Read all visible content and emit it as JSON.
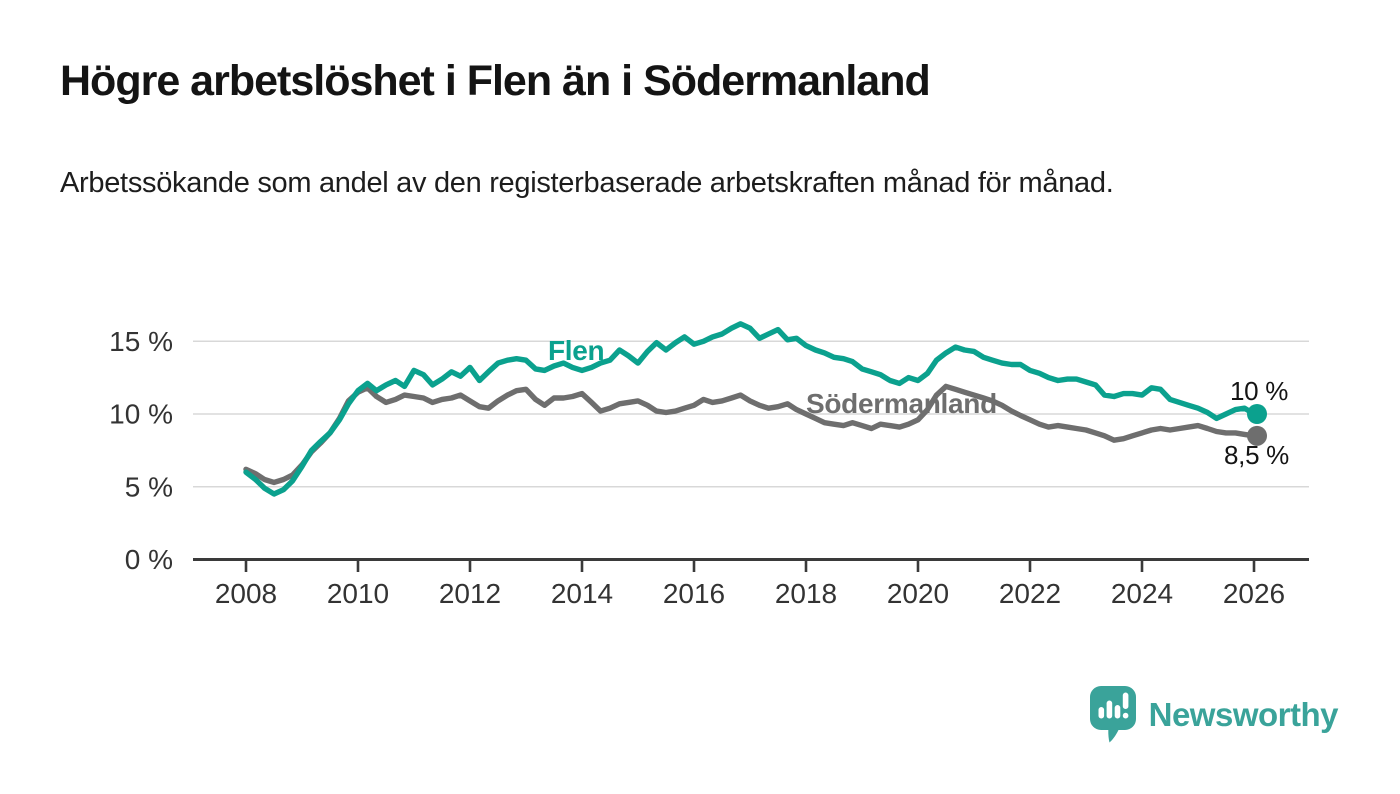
{
  "header": {
    "title": "Högre arbetslöshet i Flen än i Södermanland",
    "subtitle": "Arbetssökande som andel av den registerbaserade arbetskraften månad för månad."
  },
  "chart_data": {
    "type": "line",
    "title": "Högre arbetslöshet i Flen än i Södermanland",
    "subtitle": "Arbetssökande som andel av den registerbaserade arbetskraften månad för månad.",
    "unit": "%",
    "grid": "horizontal-only",
    "legend_position": "inline-labels-on-lines",
    "x_axis": {
      "range_years": [
        2008,
        2026.1
      ],
      "ticks": [
        2008,
        2010,
        2012,
        2014,
        2016,
        2018,
        2020,
        2022,
        2024,
        2026
      ],
      "tick_labels": [
        "2008",
        "2010",
        "2012",
        "2014",
        "2016",
        "2018",
        "2020",
        "2022",
        "2024",
        "2026"
      ]
    },
    "y_axis": {
      "range": [
        0,
        17
      ],
      "ticks": [
        {
          "value": 0,
          "label": "0 %"
        },
        {
          "value": 5,
          "label": "5 %"
        },
        {
          "value": 10,
          "label": "10 %"
        },
        {
          "value": 15,
          "label": "15 %"
        }
      ]
    },
    "style": {
      "grid_color": "#d8d8d8",
      "axis_color": "#3a3a3a",
      "tick_label_color": "#333333",
      "background": "#ffffff"
    },
    "x": [
      2008,
      2008.17,
      2008.33,
      2008.5,
      2008.67,
      2008.83,
      2009,
      2009.17,
      2009.33,
      2009.5,
      2009.67,
      2009.83,
      2010,
      2010.17,
      2010.33,
      2010.5,
      2010.67,
      2010.83,
      2011,
      2011.17,
      2011.33,
      2011.5,
      2011.67,
      2011.83,
      2012,
      2012.17,
      2012.33,
      2012.5,
      2012.67,
      2012.83,
      2013,
      2013.17,
      2013.33,
      2013.5,
      2013.67,
      2013.83,
      2014,
      2014.17,
      2014.33,
      2014.5,
      2014.67,
      2014.83,
      2015,
      2015.17,
      2015.33,
      2015.5,
      2015.67,
      2015.83,
      2016,
      2016.17,
      2016.33,
      2016.5,
      2016.67,
      2016.83,
      2017,
      2017.17,
      2017.33,
      2017.5,
      2017.67,
      2017.83,
      2018,
      2018.17,
      2018.33,
      2018.5,
      2018.67,
      2018.83,
      2019,
      2019.17,
      2019.33,
      2019.5,
      2019.67,
      2019.83,
      2020,
      2020.17,
      2020.33,
      2020.5,
      2020.67,
      2020.83,
      2021,
      2021.17,
      2021.33,
      2021.5,
      2021.67,
      2021.83,
      2022,
      2022.17,
      2022.33,
      2022.5,
      2022.67,
      2022.83,
      2023,
      2023.17,
      2023.33,
      2023.5,
      2023.67,
      2023.83,
      2024,
      2024.17,
      2024.33,
      2024.5,
      2024.67,
      2024.83,
      2025,
      2025.17,
      2025.33,
      2025.5,
      2025.67,
      2025.83,
      2026
    ],
    "series": [
      {
        "name": "Flen",
        "color": "#0ba18e",
        "end_label": "10 %",
        "end_value": 10,
        "values": [
          6.0,
          5.5,
          4.9,
          4.5,
          4.8,
          5.4,
          6.4,
          7.5,
          8.1,
          8.7,
          9.6,
          10.7,
          11.6,
          12.1,
          11.6,
          12.0,
          12.3,
          11.9,
          13.0,
          12.7,
          12.0,
          12.4,
          12.9,
          12.6,
          13.2,
          12.3,
          12.9,
          13.5,
          13.7,
          13.8,
          13.7,
          13.1,
          13.0,
          13.3,
          13.5,
          13.2,
          13.0,
          13.2,
          13.5,
          13.7,
          14.4,
          14.0,
          13.5,
          14.3,
          14.9,
          14.4,
          14.9,
          15.3,
          14.8,
          15.0,
          15.3,
          15.5,
          15.9,
          16.2,
          15.9,
          15.2,
          15.5,
          15.8,
          15.1,
          15.2,
          14.7,
          14.4,
          14.2,
          13.9,
          13.8,
          13.6,
          13.1,
          12.9,
          12.7,
          12.3,
          12.1,
          12.5,
          12.3,
          12.8,
          13.7,
          14.2,
          14.6,
          14.4,
          14.3,
          13.9,
          13.7,
          13.5,
          13.4,
          13.4,
          13.0,
          12.8,
          12.5,
          12.3,
          12.4,
          12.4,
          12.2,
          12.0,
          11.3,
          11.2,
          11.4,
          11.4,
          11.3,
          11.8,
          11.7,
          11.0,
          10.8,
          10.6,
          10.4,
          10.1,
          9.7,
          10.0,
          10.3,
          10.4,
          10.0
        ]
      },
      {
        "name": "Södermanland",
        "color": "#6e6e6e",
        "end_label": "8,5 %",
        "end_value": 8.5,
        "values": [
          6.2,
          5.9,
          5.5,
          5.3,
          5.5,
          5.8,
          6.5,
          7.4,
          8.0,
          8.7,
          9.7,
          10.9,
          11.5,
          11.8,
          11.2,
          10.8,
          11.0,
          11.3,
          11.2,
          11.1,
          10.8,
          11.0,
          11.1,
          11.3,
          10.9,
          10.5,
          10.4,
          10.9,
          11.3,
          11.6,
          11.7,
          11.0,
          10.6,
          11.1,
          11.1,
          11.2,
          11.4,
          10.8,
          10.2,
          10.4,
          10.7,
          10.8,
          10.9,
          10.6,
          10.2,
          10.1,
          10.2,
          10.4,
          10.6,
          11.0,
          10.8,
          10.9,
          11.1,
          11.3,
          10.9,
          10.6,
          10.4,
          10.5,
          10.7,
          10.3,
          10.0,
          9.7,
          9.4,
          9.3,
          9.2,
          9.4,
          9.2,
          9.0,
          9.3,
          9.2,
          9.1,
          9.3,
          9.6,
          10.3,
          11.3,
          11.9,
          11.7,
          11.5,
          11.3,
          11.1,
          10.9,
          10.6,
          10.2,
          9.9,
          9.6,
          9.3,
          9.1,
          9.2,
          9.1,
          9.0,
          8.9,
          8.7,
          8.5,
          8.2,
          8.3,
          8.5,
          8.7,
          8.9,
          9.0,
          8.9,
          9.0,
          9.1,
          9.2,
          9.0,
          8.8,
          8.7,
          8.7,
          8.6,
          8.5
        ]
      }
    ]
  },
  "branding": {
    "logo_text": "Newsworthy",
    "logo_icon": "newsworthy-speech-bubble-bar-chart-icon",
    "color": "#3aa39a"
  }
}
